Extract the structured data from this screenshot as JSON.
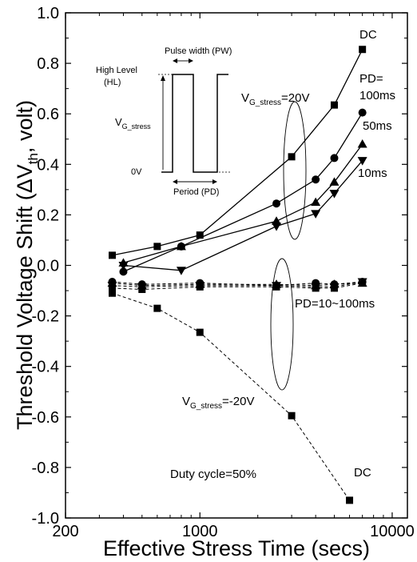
{
  "chart_data": {
    "type": "line",
    "x_scale": "log",
    "xlim": [
      200,
      12000
    ],
    "ylim": [
      -1.0,
      1.0
    ],
    "xlabel": "Effective Stress Time (secs)",
    "ylabel_main": "Threshold Voltage Shift (ΔV",
    "ylabel_sub": "th",
    "ylabel_tail": ", volt)",
    "x_ticks": [
      200,
      1000,
      10000
    ],
    "y_ticks": [
      1.0,
      0.8,
      0.6,
      0.4,
      0.2,
      0.0,
      -0.2,
      -0.4,
      -0.6,
      -0.8,
      -1.0
    ],
    "grid": false,
    "series": [
      {
        "name": "DC",
        "group": "positive",
        "marker": "square",
        "dash": false,
        "x": [
          350,
          600,
          1000,
          3000,
          5000,
          7000
        ],
        "y": [
          0.04,
          0.075,
          0.12,
          0.43,
          0.635,
          0.855
        ]
      },
      {
        "name": "100ms",
        "group": "positive",
        "marker": "circle",
        "dash": false,
        "x": [
          400,
          800,
          2500,
          4000,
          5000,
          7000
        ],
        "y": [
          -0.025,
          0.075,
          0.245,
          0.34,
          0.425,
          0.605
        ]
      },
      {
        "name": "50ms",
        "group": "positive",
        "marker": "triangle-up",
        "dash": false,
        "x": [
          400,
          800,
          2500,
          4000,
          5000,
          7000
        ],
        "y": [
          0.01,
          0.075,
          0.175,
          0.25,
          0.33,
          0.48
        ]
      },
      {
        "name": "10ms",
        "group": "positive",
        "marker": "triangle-down",
        "dash": false,
        "x": [
          400,
          800,
          2500,
          4000,
          5000,
          7000
        ],
        "y": [
          0.0,
          -0.02,
          0.155,
          0.205,
          0.285,
          0.415
        ]
      },
      {
        "name": "DC",
        "group": "negative",
        "marker": "square",
        "dash": true,
        "x": [
          350,
          600,
          1000,
          3000,
          6000
        ],
        "y": [
          -0.11,
          -0.17,
          -0.265,
          -0.595,
          -0.93
        ]
      },
      {
        "name": "",
        "group": "negative",
        "marker": "circle",
        "dash": true,
        "x": [
          350,
          500,
          1000,
          2500,
          4000,
          5000,
          7000
        ],
        "y": [
          -0.065,
          -0.075,
          -0.07,
          -0.08,
          -0.07,
          -0.075,
          -0.065
        ]
      },
      {
        "name": "",
        "group": "negative",
        "marker": "triangle-up",
        "dash": true,
        "x": [
          350,
          500,
          1000,
          2500,
          4000,
          5000,
          7000
        ],
        "y": [
          -0.07,
          -0.08,
          -0.075,
          -0.075,
          -0.08,
          -0.075,
          -0.07
        ]
      },
      {
        "name": "",
        "group": "negative",
        "marker": "triangle-down",
        "dash": true,
        "x": [
          350,
          500,
          1000,
          2500,
          4000,
          5000,
          7000
        ],
        "y": [
          -0.08,
          -0.085,
          -0.08,
          -0.08,
          -0.085,
          -0.085,
          -0.065
        ]
      },
      {
        "name": "",
        "group": "negative",
        "marker": "square",
        "dash": true,
        "x": [
          350,
          500,
          1000,
          2500,
          4000,
          5000,
          7000
        ],
        "y": [
          -0.09,
          -0.095,
          -0.085,
          -0.085,
          -0.09,
          -0.09,
          -0.07
        ]
      }
    ],
    "annotations": {
      "dc_top": "DC",
      "vg_pos_main": "V",
      "vg_pos_sub": "G_stress",
      "vg_pos_tail": "=20V",
      "pd_eq": "PD=",
      "pd_100": "100ms",
      "pd_50": "50ms",
      "pd_10": "10ms",
      "pd_range": "PD=10~100ms",
      "vg_neg_main": "V",
      "vg_neg_sub": "G_stress",
      "vg_neg_tail": "=-20V",
      "dc_bottom": "DC",
      "duty": "Duty cycle=50%"
    },
    "inset": {
      "pulse_width": "Pulse width (PW)",
      "high_level": "High Level",
      "hl": "(HL)",
      "vg_main": "V",
      "vg_sub": "G_stress",
      "zero_v": "0V",
      "period": "Period (PD)"
    }
  }
}
